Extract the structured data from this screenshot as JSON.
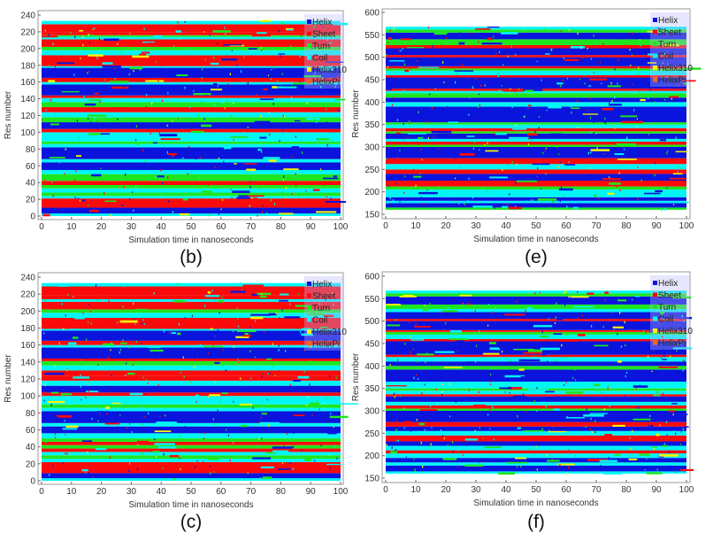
{
  "colors": {
    "Helix": "#0a14dc",
    "Sheet": "#fa0a0a",
    "Turn": "#1ee61e",
    "Coil": "#00f5f5",
    "Helix310": "#f5f500",
    "HelixPi": "#f06a14"
  },
  "chart_data": [
    {
      "type": "heatmap",
      "panel_label": "(b)",
      "xlabel": "Simulation time in nanoseconds",
      "ylabel": "Res number",
      "xlim": [
        0,
        100
      ],
      "ylim": [
        0,
        240
      ],
      "xticks": [
        "0",
        "10",
        "20",
        "30",
        "40",
        "50",
        "60",
        "70",
        "80",
        "90",
        "100"
      ],
      "yticks": [
        "0",
        "20",
        "40",
        "60",
        "80",
        "100",
        "120",
        "140",
        "160",
        "180",
        "200",
        "220",
        "240"
      ],
      "legend": [
        "Helix",
        "Sheet",
        "Turn",
        "Coil",
        "Helix310",
        "HelixPi"
      ],
      "legend_position": "top-right",
      "bands": [
        [
          0,
          3,
          "Coil"
        ],
        [
          3,
          10,
          "Helix"
        ],
        [
          10,
          21,
          "Sheet"
        ],
        [
          21,
          24,
          "Coil"
        ],
        [
          24,
          28,
          "Turn"
        ],
        [
          28,
          33,
          "Coil"
        ],
        [
          33,
          37,
          "Turn"
        ],
        [
          37,
          42,
          "Sheet"
        ],
        [
          42,
          46,
          "Turn"
        ],
        [
          46,
          50,
          "Turn"
        ],
        [
          50,
          55,
          "Coil"
        ],
        [
          55,
          64,
          "Helix"
        ],
        [
          64,
          68,
          "Coil"
        ],
        [
          68,
          82,
          "Helix"
        ],
        [
          82,
          86,
          "Coil"
        ],
        [
          86,
          89,
          "Turn"
        ],
        [
          89,
          100,
          "Coil"
        ],
        [
          100,
          104,
          "Sheet"
        ],
        [
          104,
          112,
          "Helix"
        ],
        [
          112,
          118,
          "Turn"
        ],
        [
          118,
          124,
          "Coil"
        ],
        [
          124,
          130,
          "Sheet"
        ],
        [
          130,
          136,
          "Turn"
        ],
        [
          136,
          141,
          "Coil"
        ],
        [
          141,
          144,
          "Sheet"
        ],
        [
          144,
          157,
          "Helix"
        ],
        [
          157,
          160,
          "Coil"
        ],
        [
          160,
          165,
          "Sheet"
        ],
        [
          165,
          177,
          "Helix"
        ],
        [
          177,
          179,
          "Coil"
        ],
        [
          179,
          192,
          "Sheet"
        ],
        [
          192,
          198,
          "Coil"
        ],
        [
          198,
          202,
          "Turn"
        ],
        [
          202,
          211,
          "Sheet"
        ],
        [
          211,
          214,
          "Coil"
        ],
        [
          214,
          216,
          "Turn"
        ],
        [
          216,
          219,
          "Sheet"
        ],
        [
          219,
          229,
          "Sheet"
        ],
        [
          229,
          233,
          "Coil"
        ]
      ]
    },
    {
      "type": "heatmap",
      "panel_label": "(e)",
      "xlabel": "Simulation time in nanoseconds",
      "ylabel": "Res number",
      "xlim": [
        0,
        100
      ],
      "ylim": [
        150,
        600
      ],
      "xticks": [
        "0",
        "10",
        "20",
        "30",
        "40",
        "50",
        "60",
        "70",
        "80",
        "90",
        "100"
      ],
      "yticks": [
        "150",
        "200",
        "250",
        "300",
        "350",
        "400",
        "450",
        "500",
        "550",
        "600"
      ],
      "legend": [
        "Helix",
        "Sheet",
        "Turn",
        "Coil",
        "Helix310",
        "HelixPi"
      ],
      "legend_position": "top-right",
      "bands": [
        [
          160,
          165,
          "Turn"
        ],
        [
          165,
          175,
          "Helix"
        ],
        [
          175,
          180,
          "Coil"
        ],
        [
          180,
          188,
          "Helix"
        ],
        [
          188,
          205,
          "Coil"
        ],
        [
          205,
          212,
          "Turn"
        ],
        [
          212,
          225,
          "Sheet"
        ],
        [
          225,
          240,
          "Helix"
        ],
        [
          240,
          250,
          "Sheet"
        ],
        [
          250,
          262,
          "Coil"
        ],
        [
          262,
          275,
          "Sheet"
        ],
        [
          275,
          300,
          "Helix"
        ],
        [
          300,
          305,
          "Turn"
        ],
        [
          305,
          312,
          "Sheet"
        ],
        [
          312,
          318,
          "Coil"
        ],
        [
          318,
          330,
          "Helix"
        ],
        [
          330,
          335,
          "Turn"
        ],
        [
          335,
          342,
          "Sheet"
        ],
        [
          342,
          350,
          "Coil"
        ],
        [
          350,
          355,
          "Turn"
        ],
        [
          355,
          390,
          "Helix"
        ],
        [
          390,
          400,
          "Coil"
        ],
        [
          400,
          410,
          "Helix"
        ],
        [
          410,
          420,
          "Turn"
        ],
        [
          420,
          425,
          "Coil"
        ],
        [
          425,
          430,
          "Sheet"
        ],
        [
          430,
          455,
          "Helix"
        ],
        [
          455,
          460,
          "Sheet"
        ],
        [
          460,
          470,
          "Coil"
        ],
        [
          470,
          475,
          "Turn"
        ],
        [
          475,
          480,
          "Sheet"
        ],
        [
          480,
          500,
          "Helix"
        ],
        [
          500,
          505,
          "Sheet"
        ],
        [
          505,
          520,
          "Helix"
        ],
        [
          520,
          527,
          "Sheet"
        ],
        [
          527,
          540,
          "Turn"
        ],
        [
          540,
          555,
          "Helix"
        ],
        [
          555,
          562,
          "Turn"
        ],
        [
          562,
          568,
          "Coil"
        ]
      ]
    },
    {
      "type": "heatmap",
      "panel_label": "(c)",
      "xlabel": "Simulation time in nanoseconds",
      "ylabel": "Res number",
      "xlim": [
        0,
        100
      ],
      "ylim": [
        0,
        240
      ],
      "xticks": [
        "0",
        "10",
        "20",
        "30",
        "40",
        "50",
        "60",
        "70",
        "80",
        "90",
        "100"
      ],
      "yticks": [
        "0",
        "20",
        "40",
        "60",
        "80",
        "100",
        "120",
        "140",
        "160",
        "180",
        "200",
        "220",
        "240"
      ],
      "legend": [
        "Helix",
        "Sheet",
        "Turn",
        "Coil",
        "Helix310",
        "HelixPi"
      ],
      "legend_position": "top-right",
      "bands": [
        [
          0,
          3,
          "Coil"
        ],
        [
          3,
          9,
          "Helix"
        ],
        [
          9,
          22,
          "Sheet"
        ],
        [
          22,
          26,
          "Coil"
        ],
        [
          26,
          30,
          "Turn"
        ],
        [
          30,
          34,
          "Coil"
        ],
        [
          34,
          38,
          "Sheet"
        ],
        [
          38,
          42,
          "Turn"
        ],
        [
          42,
          46,
          "Sheet"
        ],
        [
          46,
          50,
          "Turn"
        ],
        [
          50,
          56,
          "Coil"
        ],
        [
          56,
          64,
          "Helix"
        ],
        [
          64,
          68,
          "Coil"
        ],
        [
          68,
          82,
          "Helix"
        ],
        [
          82,
          86,
          "Coil"
        ],
        [
          86,
          90,
          "Turn"
        ],
        [
          90,
          100,
          "Coil"
        ],
        [
          100,
          104,
          "Sheet"
        ],
        [
          104,
          112,
          "Helix"
        ],
        [
          112,
          118,
          "Coil"
        ],
        [
          118,
          124,
          "Sheet"
        ],
        [
          124,
          130,
          "Sheet"
        ],
        [
          130,
          136,
          "Coil"
        ],
        [
          136,
          141,
          "Turn"
        ],
        [
          141,
          144,
          "Sheet"
        ],
        [
          144,
          157,
          "Helix"
        ],
        [
          157,
          160,
          "Coil"
        ],
        [
          160,
          165,
          "Sheet"
        ],
        [
          165,
          177,
          "Helix"
        ],
        [
          177,
          179,
          "Coil"
        ],
        [
          179,
          192,
          "Sheet"
        ],
        [
          192,
          198,
          "Coil"
        ],
        [
          198,
          202,
          "Turn"
        ],
        [
          202,
          211,
          "Sheet"
        ],
        [
          211,
          214,
          "Coil"
        ],
        [
          214,
          219,
          "Sheet"
        ],
        [
          219,
          229,
          "Sheet"
        ],
        [
          229,
          233,
          "Coil"
        ]
      ]
    },
    {
      "type": "heatmap",
      "panel_label": "(f)",
      "xlabel": "Simulation time in nanoseconds",
      "ylabel": "Res number",
      "xlim": [
        0,
        100
      ],
      "ylim": [
        150,
        600
      ],
      "xticks": [
        "0",
        "10",
        "20",
        "30",
        "40",
        "50",
        "60",
        "70",
        "80",
        "90",
        "100"
      ],
      "yticks": [
        "150",
        "200",
        "250",
        "300",
        "350",
        "400",
        "450",
        "500",
        "550",
        "600"
      ],
      "legend": [
        "Helix",
        "Sheet",
        "Turn",
        "Coil",
        "Helix310",
        "HelixPi"
      ],
      "legend_position": "top-right",
      "bands": [
        [
          160,
          165,
          "Coil"
        ],
        [
          165,
          178,
          "Helix"
        ],
        [
          178,
          185,
          "Coil"
        ],
        [
          185,
          195,
          "Helix"
        ],
        [
          195,
          205,
          "Coil"
        ],
        [
          205,
          212,
          "Sheet"
        ],
        [
          212,
          222,
          "Coil"
        ],
        [
          222,
          232,
          "Helix"
        ],
        [
          232,
          245,
          "Sheet"
        ],
        [
          245,
          255,
          "Coil"
        ],
        [
          255,
          265,
          "Helix"
        ],
        [
          265,
          275,
          "Sheet"
        ],
        [
          275,
          300,
          "Helix"
        ],
        [
          300,
          305,
          "Turn"
        ],
        [
          305,
          312,
          "Sheet"
        ],
        [
          312,
          320,
          "Coil"
        ],
        [
          320,
          332,
          "Helix"
        ],
        [
          332,
          337,
          "Sheet"
        ],
        [
          337,
          345,
          "Coil"
        ],
        [
          345,
          350,
          "Turn"
        ],
        [
          350,
          365,
          "Coil"
        ],
        [
          365,
          392,
          "Helix"
        ],
        [
          392,
          400,
          "Turn"
        ],
        [
          400,
          410,
          "Helix"
        ],
        [
          410,
          420,
          "Coil"
        ],
        [
          420,
          425,
          "Sheet"
        ],
        [
          425,
          455,
          "Helix"
        ],
        [
          455,
          460,
          "Sheet"
        ],
        [
          460,
          470,
          "Coil"
        ],
        [
          470,
          476,
          "Turn"
        ],
        [
          476,
          480,
          "Sheet"
        ],
        [
          480,
          500,
          "Helix"
        ],
        [
          500,
          505,
          "Sheet"
        ],
        [
          505,
          520,
          "Helix"
        ],
        [
          520,
          527,
          "Coil"
        ],
        [
          527,
          537,
          "Turn"
        ],
        [
          537,
          555,
          "Helix"
        ],
        [
          555,
          562,
          "Turn"
        ],
        [
          562,
          568,
          "Coil"
        ]
      ]
    }
  ]
}
